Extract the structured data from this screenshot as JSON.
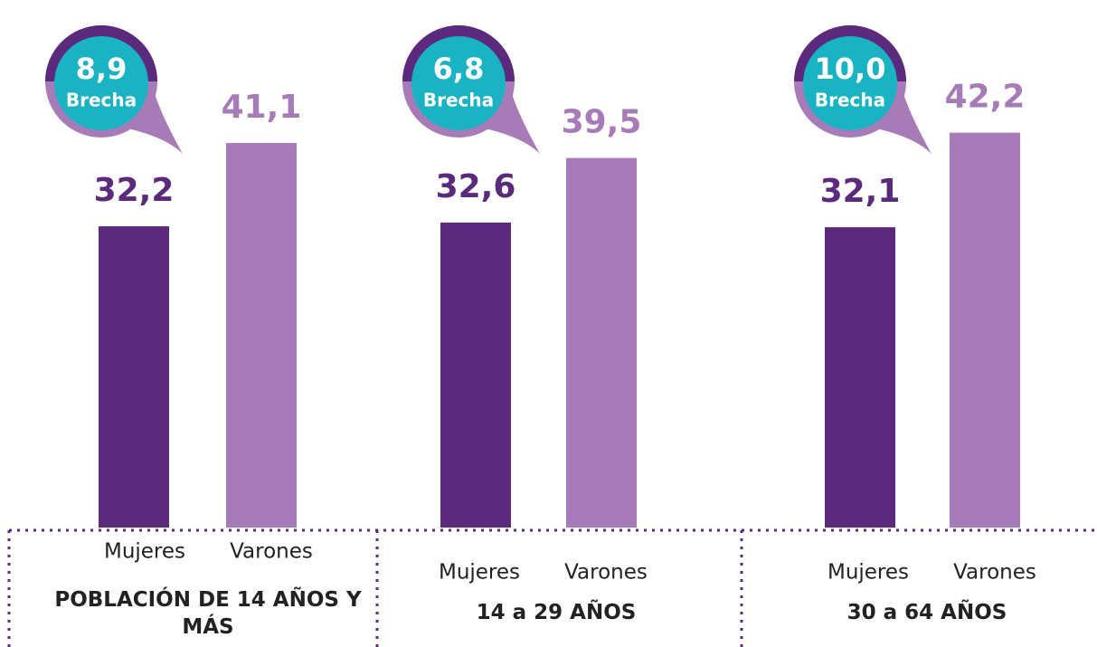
{
  "chart_data": {
    "type": "bar",
    "categories": [
      "POBLACIÓN DE 14 AÑOS Y MÁS",
      "14 a 29 AÑOS",
      "30 a 64 AÑOS"
    ],
    "series": [
      {
        "name": "Mujeres",
        "color": "#5b2a7c",
        "values": [
          32.2,
          32.6,
          32.1
        ],
        "value_labels": [
          "32,2",
          "32,6",
          "32,1"
        ]
      },
      {
        "name": "Varones",
        "color": "#a77bb7",
        "values": [
          41.1,
          39.5,
          42.2
        ],
        "value_labels": [
          "41,1",
          "39,5",
          "42,2"
        ]
      }
    ],
    "gap": {
      "label": "Brecha",
      "color": "#1ab3c4",
      "values": [
        8.9,
        6.8,
        10.0
      ],
      "value_labels": [
        "8,9",
        "6,8",
        "10,0"
      ]
    },
    "ylim": [
      0,
      56
    ]
  }
}
